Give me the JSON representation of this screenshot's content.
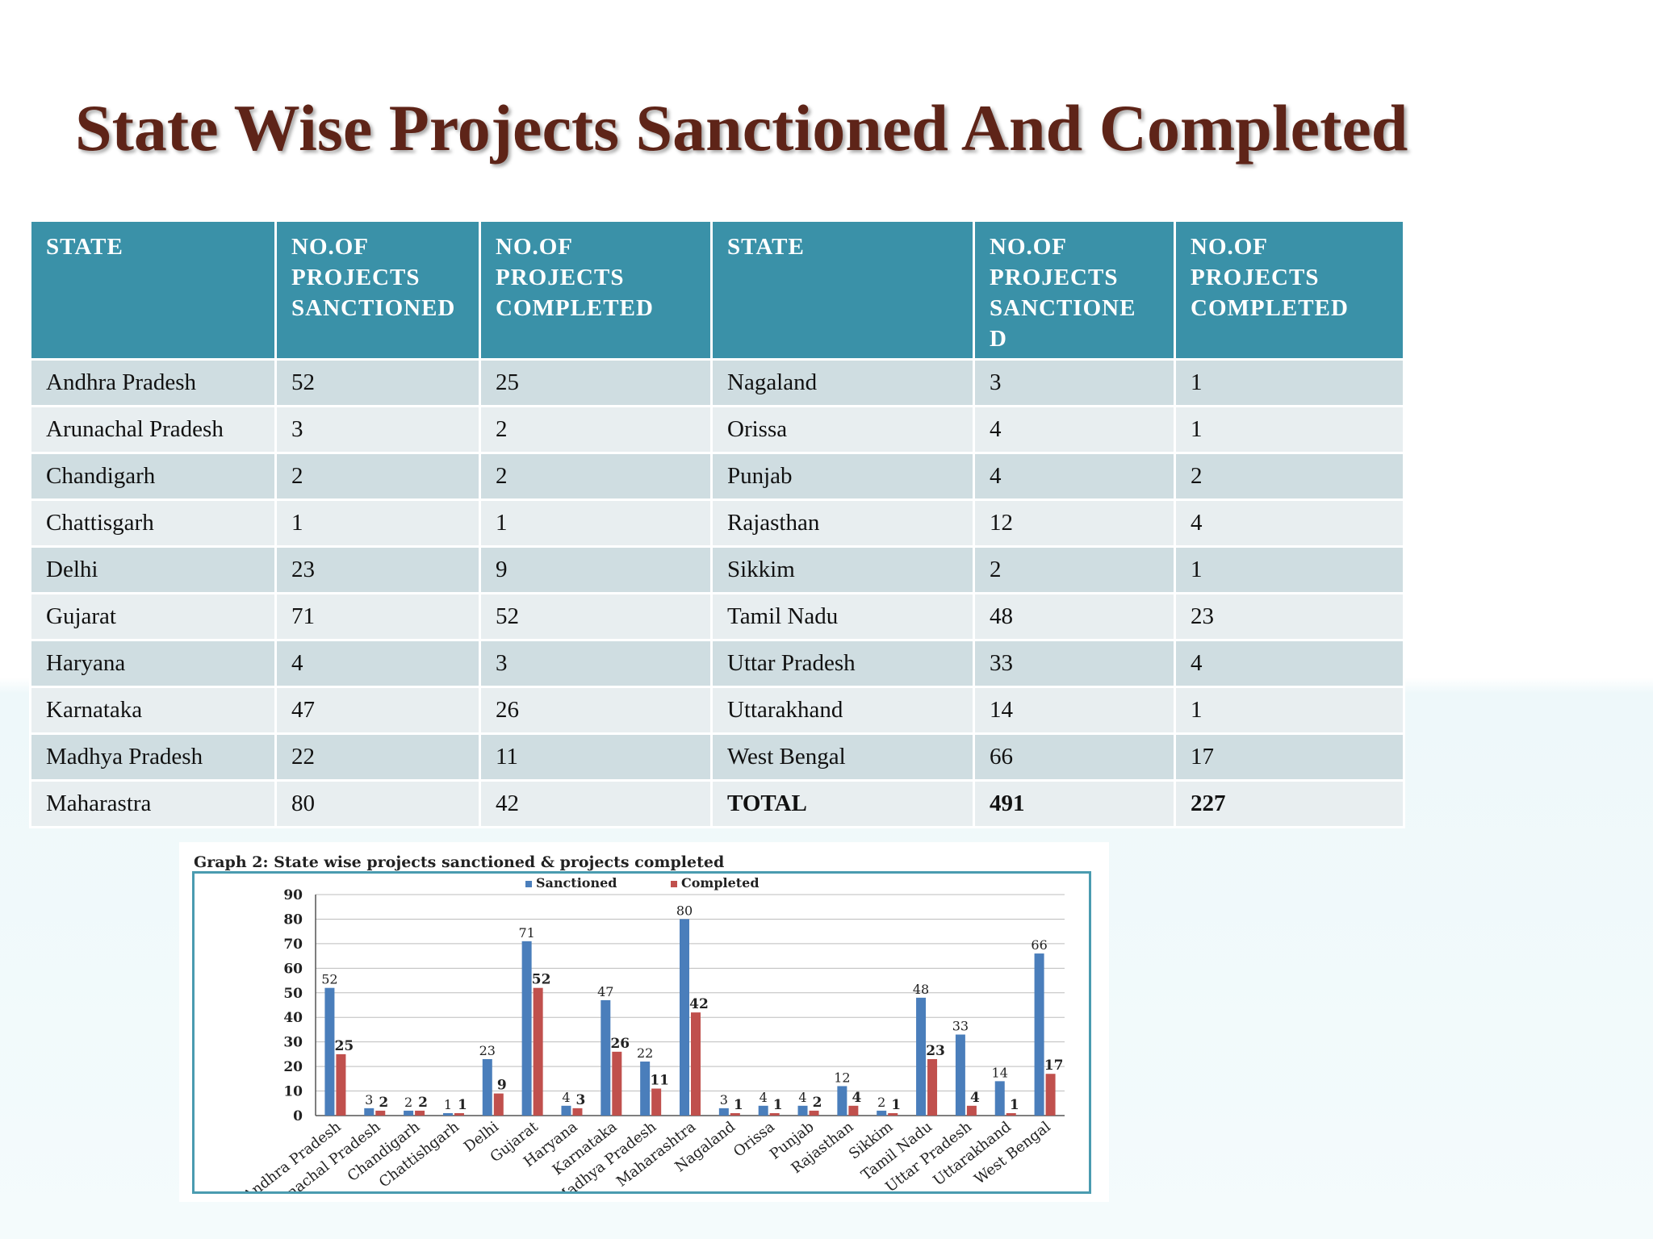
{
  "title": "State Wise Projects Sanctioned And Completed",
  "table": {
    "headers": [
      "STATE",
      "NO.OF PROJECTS SANCTIONED",
      "NO.OF PROJECTS COMPLETED",
      "STATE",
      "NO.OF PROJECTS SANCTIONE D",
      "NO.OF PROJECTS COMPLETED"
    ],
    "header_lines": [
      [
        "STATE"
      ],
      [
        "NO.OF",
        "PROJECTS",
        "SANCTIONED"
      ],
      [
        "NO.OF",
        "PROJECTS",
        "COMPLETED"
      ],
      [
        "STATE"
      ],
      [
        "NO.OF",
        "PROJECTS",
        "SANCTIONE",
        "D"
      ],
      [
        "NO.OF",
        "PROJECTS",
        "COMPLETED"
      ]
    ],
    "rows": [
      [
        "Andhra Pradesh",
        "52",
        "25",
        "Nagaland",
        "3",
        "1"
      ],
      [
        "Arunachal Pradesh",
        "3",
        "2",
        "Orissa",
        "4",
        "1"
      ],
      [
        "Chandigarh",
        "2",
        "2",
        "Punjab",
        "4",
        "2"
      ],
      [
        "Chattisgarh",
        "1",
        "1",
        "Rajasthan",
        "12",
        "4"
      ],
      [
        "Delhi",
        "23",
        "9",
        "Sikkim",
        "2",
        "1"
      ],
      [
        "Gujarat",
        "71",
        "52",
        "Tamil Nadu",
        "48",
        "23"
      ],
      [
        "Haryana",
        "4",
        "3",
        "Uttar Pradesh",
        "33",
        "4"
      ],
      [
        "Karnataka",
        "47",
        "26",
        "Uttarakhand",
        "14",
        "1"
      ],
      [
        "Madhya Pradesh",
        "22",
        "11",
        "West Bengal",
        "66",
        "17"
      ],
      [
        "Maharastra",
        "80",
        "42",
        "TOTAL",
        "491",
        "227"
      ]
    ]
  },
  "chart_data": {
    "type": "bar",
    "title": "Graph 2: State wise projects sanctioned & projects completed",
    "categories": [
      "Andhra Pradesh",
      "Arunachal Pradesh",
      "Chandigarh",
      "Chattishgarh",
      "Delhi",
      "Gujarat",
      "Haryana",
      "Karnataka",
      "Madhya Pradesh",
      "Maharashtra",
      "Nagaland",
      "Orissa",
      "Punjab",
      "Rajasthan",
      "Sikkim",
      "Tamil Nadu",
      "Uttar Pradesh",
      "Uttarakhand",
      "West Bengal"
    ],
    "series": [
      {
        "name": "Sanctioned",
        "color": "#4a7ebb",
        "values": [
          52,
          3,
          2,
          1,
          23,
          71,
          4,
          47,
          22,
          80,
          3,
          4,
          4,
          12,
          2,
          48,
          33,
          14,
          66
        ]
      },
      {
        "name": "Completed",
        "color": "#c0504d",
        "values": [
          25,
          2,
          2,
          1,
          9,
          52,
          3,
          26,
          11,
          42,
          1,
          1,
          2,
          4,
          1,
          23,
          4,
          1,
          17
        ]
      }
    ],
    "ylim": [
      0,
      90
    ],
    "yticks": [
      0,
      10,
      20,
      30,
      40,
      50,
      60,
      70,
      80,
      90
    ],
    "grid": true,
    "legend": "top-center",
    "xlabel": "",
    "ylabel": ""
  }
}
